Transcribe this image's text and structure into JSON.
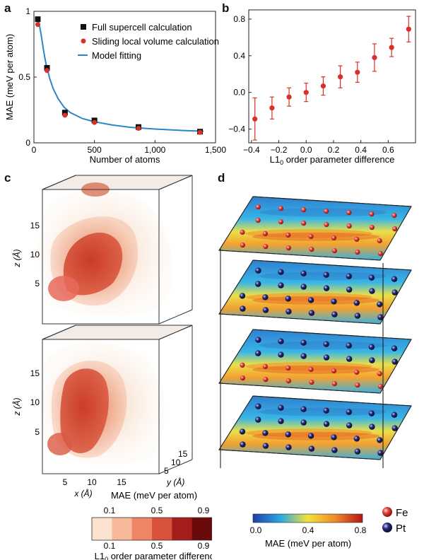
{
  "panels": {
    "a": "a",
    "b": "b",
    "c": "c",
    "d": "d"
  },
  "chart_data": [
    {
      "panel": "a",
      "type": "scatter",
      "xlabel": "Number of atoms",
      "ylabel": "MAE (meV per atom)",
      "xlim": [
        0,
        1500
      ],
      "ylim": [
        0,
        1.0
      ],
      "xticks": [
        0,
        500,
        1000,
        1500
      ],
      "xtick_labels": [
        "0",
        "500",
        "1,000",
        "1,500"
      ],
      "yticks": [
        0,
        0.5,
        1
      ],
      "ytick_labels": [
        "0",
        "0.5",
        "1"
      ],
      "legend_position": "top-right",
      "series": [
        {
          "name": "Full supercell calculation",
          "marker": "square",
          "color": "#111111",
          "x": [
            32,
            108,
            256,
            500,
            864,
            1372
          ],
          "y": [
            0.94,
            0.57,
            0.23,
            0.17,
            0.12,
            0.085
          ]
        },
        {
          "name": "Sliding local volume calculation",
          "marker": "circle",
          "color": "#d9302c",
          "x": [
            32,
            108,
            256,
            500,
            864,
            1372
          ],
          "y": [
            0.9,
            0.55,
            0.21,
            0.155,
            0.11,
            0.08
          ]
        },
        {
          "name": "Model fitting",
          "marker": "line",
          "color": "#2a86c8",
          "x": [
            20,
            40,
            60,
            80,
            100,
            130,
            160,
            200,
            250,
            300,
            400,
            500,
            650,
            800,
            1000,
            1200,
            1400
          ],
          "y": [
            0.96,
            0.92,
            0.82,
            0.7,
            0.6,
            0.49,
            0.41,
            0.335,
            0.27,
            0.23,
            0.185,
            0.16,
            0.135,
            0.118,
            0.105,
            0.095,
            0.088
          ]
        }
      ]
    },
    {
      "panel": "b",
      "type": "scatter",
      "xlabel_prefix": "L1",
      "xlabel_sub": "0",
      "xlabel_suffix": " order parameter difference",
      "ylabel": "",
      "xlim": [
        -0.42,
        0.8
      ],
      "ylim": [
        -0.55,
        0.9
      ],
      "xticks": [
        -0.4,
        -0.2,
        0,
        0.2,
        0.4,
        0.6
      ],
      "xtick_labels": [
        "−0.4",
        "−0.2",
        "0.0",
        "0.2",
        "0.4",
        "0.6"
      ],
      "yticks": [
        -0.4,
        0,
        0.4,
        0.8
      ],
      "ytick_labels": [
        "−0.4",
        "0.0",
        "0.4",
        "0.8"
      ],
      "series": [
        {
          "name": "",
          "color": "#d9302c",
          "x": [
            -0.375,
            -0.25,
            -0.125,
            0.0,
            0.125,
            0.25,
            0.375,
            0.5,
            0.625,
            0.75
          ],
          "y": [
            -0.29,
            -0.17,
            -0.05,
            0.0,
            0.07,
            0.17,
            0.22,
            0.38,
            0.49,
            0.69
          ],
          "err": [
            0.23,
            0.12,
            0.1,
            0.1,
            0.1,
            0.12,
            0.11,
            0.15,
            0.1,
            0.14
          ]
        }
      ]
    }
  ],
  "panel_c": {
    "z_axis_label": "z (Å)",
    "y_axis_label": "y (Å)",
    "x_axis_label": "x (Å)",
    "z_ticks": [
      "5",
      "10",
      "15"
    ],
    "x_ticks": [
      "5",
      "10",
      "15"
    ],
    "y_ticks": [
      "5",
      "10",
      "15"
    ],
    "colorbar_top_title": "MAE (meV per atom)",
    "colorbar_top_ticks": [
      "0.1",
      "0.5",
      "0.9"
    ],
    "colorbar_bottom_ticks": [
      "0.1",
      "0.5",
      "0.9"
    ],
    "colorbar_bottom_title_prefix": "L1",
    "colorbar_bottom_title_sub": "0",
    "colorbar_bottom_title_suffix": " order parameter difference",
    "colorbar_colors": [
      "#fbe3cf",
      "#f7b99a",
      "#ee8666",
      "#d8523c",
      "#a61e1c",
      "#6b0a0a"
    ]
  },
  "panel_d": {
    "layers": [
      {
        "top_atom": "Fe",
        "bottom_atom": "Fe"
      },
      {
        "top_atom": "Pt",
        "bottom_atom": "Pt"
      },
      {
        "top_atom": "Pt",
        "bottom_atom": "Fe"
      },
      {
        "top_atom": "Pt",
        "bottom_atom": "Pt"
      }
    ],
    "colorbar_ticks": [
      "0.0",
      "0.4",
      "0.8"
    ],
    "colorbar_title": "MAE (meV per atom)",
    "legend": [
      {
        "label": "Fe",
        "color": "#d9302c"
      },
      {
        "label": "Pt",
        "color": "#1a1f5c"
      }
    ]
  }
}
